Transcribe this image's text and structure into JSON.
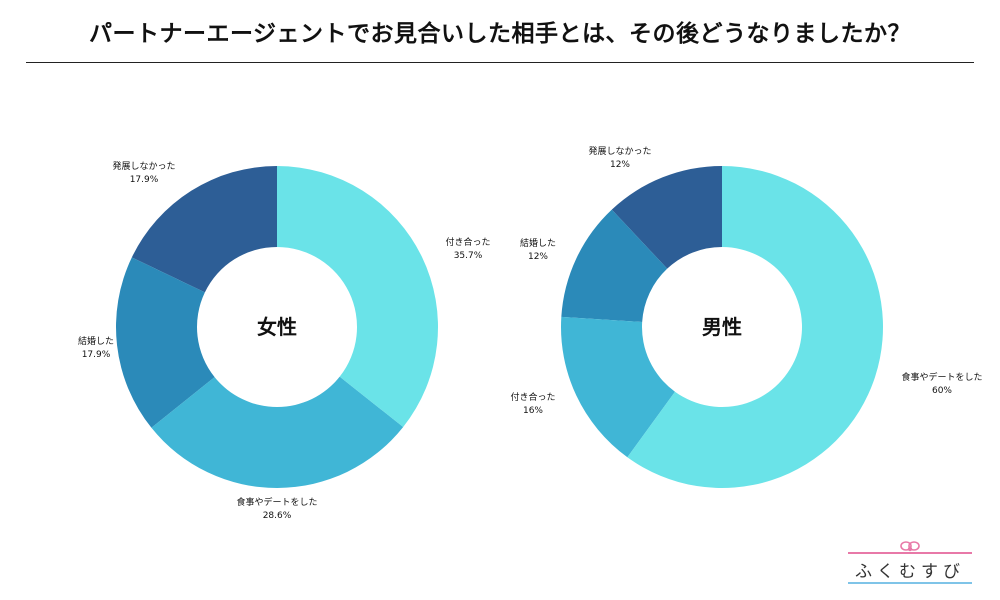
{
  "title": "パートナーエージェントでお見合いした相手とは、その後どうなりましたか？",
  "logo_text": "ふくむすび",
  "colors": {
    "c1": "#6ae3e8",
    "c2": "#40b6d6",
    "c3": "#2b8ab9",
    "c4": "#2d5e96"
  },
  "chart_data": [
    {
      "type": "pie",
      "title": "女性",
      "categories": [
        "付き合った",
        "食事やデートをした",
        "結婚した",
        "発展しなかった"
      ],
      "values": [
        35.7,
        28.6,
        17.9,
        17.9
      ],
      "labels": [
        "35.7%",
        "28.6%",
        "17.9%",
        "17.9%"
      ]
    },
    {
      "type": "pie",
      "title": "男性",
      "categories": [
        "食事やデートをした",
        "付き合った",
        "結婚した",
        "発展しなかった"
      ],
      "values": [
        60,
        16,
        12,
        12
      ],
      "labels": [
        "60%",
        "16%",
        "12%",
        "12%"
      ]
    }
  ]
}
